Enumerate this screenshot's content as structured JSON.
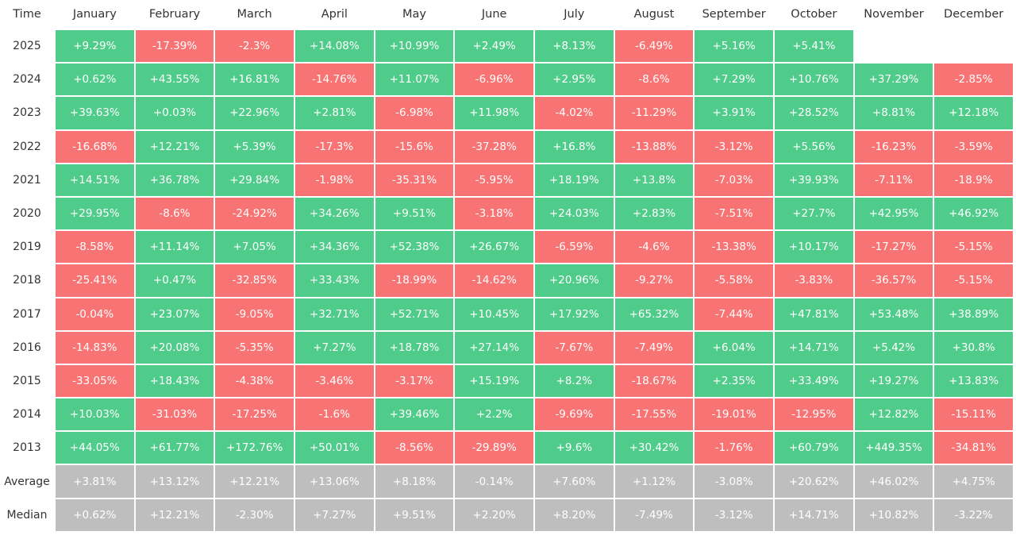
{
  "table": {
    "header": [
      "Time",
      "January",
      "February",
      "March",
      "April",
      "May",
      "June",
      "July",
      "August",
      "September",
      "October",
      "November",
      "December"
    ],
    "rows": [
      [
        "2025",
        "+9.29%",
        "-17.39%",
        "-2.3%",
        "+14.08%",
        "+10.99%",
        "+2.49%",
        "+8.13%",
        "-6.49%",
        "+5.16%",
        "+5.41%"
      ],
      [
        "2024",
        "+0.62%",
        "+43.55%",
        "+16.81%",
        "-14.76%",
        "+11.07%",
        "-6.96%",
        "+2.95%",
        "-8.6%",
        "+7.29%",
        "+10.76%",
        "+37.29%",
        "-2.85%"
      ],
      [
        "2023",
        "+39.63%",
        "+0.03%",
        "+22.96%",
        "+2.81%",
        "-6.98%",
        "+11.98%",
        "-4.02%",
        "-11.29%",
        "+3.91%",
        "+28.52%",
        "+8.81%",
        "+12.18%"
      ],
      [
        "2022",
        "-16.68%",
        "+12.21%",
        "+5.39%",
        "-17.3%",
        "-15.6%",
        "-37.28%",
        "+16.8%",
        "-13.88%",
        "-3.12%",
        "+5.56%",
        "-16.23%",
        "-3.59%"
      ],
      [
        "2021",
        "+14.51%",
        "+36.78%",
        "+29.84%",
        "-1.98%",
        "-35.31%",
        "-5.95%",
        "+18.19%",
        "+13.8%",
        "-7.03%",
        "+39.93%",
        "-7.11%",
        "-18.9%"
      ],
      [
        "2020",
        "+29.95%",
        "-8.6%",
        "-24.92%",
        "+34.26%",
        "+9.51%",
        "-3.18%",
        "+24.03%",
        "+2.83%",
        "-7.51%",
        "+27.7%",
        "+42.95%",
        "+46.92%"
      ],
      [
        "2019",
        "-8.58%",
        "+11.14%",
        "+7.05%",
        "+34.36%",
        "+52.38%",
        "+26.67%",
        "-6.59%",
        "-4.6%",
        "-13.38%",
        "+10.17%",
        "-17.27%",
        "-5.15%"
      ],
      [
        "2018",
        "-25.41%",
        "+0.47%",
        "-32.85%",
        "+33.43%",
        "-18.99%",
        "-14.62%",
        "+20.96%",
        "-9.27%",
        "-5.58%",
        "-3.83%",
        "-36.57%",
        "-5.15%"
      ],
      [
        "2017",
        "-0.04%",
        "+23.07%",
        "-9.05%",
        "+32.71%",
        "+52.71%",
        "+10.45%",
        "+17.92%",
        "+65.32%",
        "-7.44%",
        "+47.81%",
        "+53.48%",
        "+38.89%"
      ],
      [
        "2016",
        "-14.83%",
        "+20.08%",
        "-5.35%",
        "+7.27%",
        "+18.78%",
        "+27.14%",
        "-7.67%",
        "-7.49%",
        "+6.04%",
        "+14.71%",
        "+5.42%",
        "+30.8%"
      ],
      [
        "2015",
        "-33.05%",
        "+18.43%",
        "-4.38%",
        "-3.46%",
        "-3.17%",
        "+15.19%",
        "+8.2%",
        "-18.67%",
        "+2.35%",
        "+33.49%",
        "+19.27%",
        "+13.83%"
      ],
      [
        "2014",
        "+10.03%",
        "-31.03%",
        "-17.25%",
        "-1.6%",
        "+39.46%",
        "+2.2%",
        "-9.69%",
        "-17.55%",
        "-19.01%",
        "-12.95%",
        "+12.82%",
        "-15.11%"
      ],
      [
        "2013",
        "+44.05%",
        "+61.77%",
        "+172.76%",
        "+50.01%",
        "-8.56%",
        "-29.89%",
        "+9.6%",
        "+30.42%",
        "-1.76%",
        "+60.79%",
        "+449.35%",
        "-34.81%"
      ]
    ],
    "summary": [
      [
        "Average",
        "+3.81%",
        "+13.12%",
        "+12.21%",
        "+13.06%",
        "+8.18%",
        "-0.14%",
        "+7.60%",
        "+1.12%",
        "-3.08%",
        "+20.62%",
        "+46.02%",
        "+4.75%"
      ],
      [
        "Median",
        "+0.62%",
        "+12.21%",
        "-2.30%",
        "+7.27%",
        "+9.51%",
        "+2.20%",
        "+8.20%",
        "-7.49%",
        "-3.12%",
        "+14.71%",
        "+10.82%",
        "-3.22%"
      ]
    ]
  }
}
